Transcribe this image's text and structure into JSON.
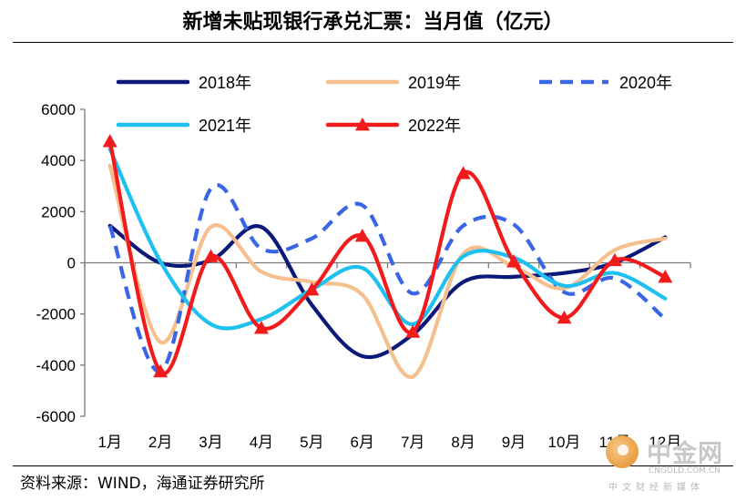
{
  "title": "新增未贴现银行承兑汇票：当月值（亿元）",
  "source": "资料来源：WIND，海通证券研究所",
  "watermark": {
    "name": "中金网",
    "domain": "CNGOLD.COM.CN",
    "tagline": "中文财经新媒体"
  },
  "chart_data": {
    "type": "line",
    "title": "新增未贴现银行承兑汇票：当月值（亿元）",
    "categories": [
      "1月",
      "2月",
      "3月",
      "4月",
      "5月",
      "6月",
      "7月",
      "8月",
      "9月",
      "10月",
      "11月",
      "12月"
    ],
    "ylim": [
      -6000,
      6000
    ],
    "yticks": [
      -6000,
      -4000,
      -2000,
      0,
      2000,
      4000,
      6000
    ],
    "ytick_labels": [
      "-6000",
      "-4000",
      "-2000",
      "0",
      "2000",
      "4000",
      "6000"
    ],
    "legend_position": "top",
    "series": [
      {
        "name": "2018年",
        "color": "#0b1a7a",
        "dash": "solid",
        "marker": "none",
        "values": [
          1450,
          0,
          100,
          1400,
          -1650,
          -3650,
          -2800,
          -750,
          -550,
          -400,
          0,
          1000
        ]
      },
      {
        "name": "2019年",
        "color": "#f5bf8e",
        "dash": "solid",
        "marker": "none",
        "values": [
          3800,
          -3100,
          1400,
          -350,
          -750,
          -1250,
          -4450,
          350,
          -150,
          -1000,
          500,
          950
        ]
      },
      {
        "name": "2020年",
        "color": "#3a66e6",
        "dash": "dashed",
        "marker": "none",
        "values": [
          1450,
          -4250,
          2900,
          550,
          950,
          2250,
          -1200,
          1450,
          1500,
          -1150,
          -600,
          -2200
        ]
      },
      {
        "name": "2021年",
        "color": "#1ec0f0",
        "dash": "solid",
        "marker": "none",
        "values": [
          4450,
          50,
          -2400,
          -2200,
          -1050,
          -200,
          -2400,
          250,
          200,
          -900,
          -400,
          -1400
        ]
      },
      {
        "name": "2022年",
        "color": "#f21a1a",
        "dash": "solid",
        "marker": "triangle",
        "values": [
          4750,
          -4250,
          250,
          -2550,
          -1050,
          1050,
          -2700,
          3500,
          50,
          -2150,
          100,
          -550
        ]
      }
    ]
  }
}
